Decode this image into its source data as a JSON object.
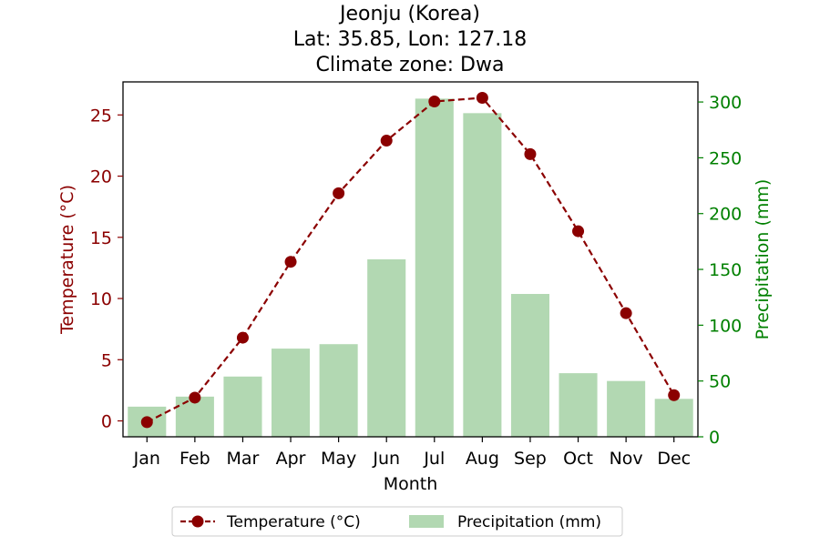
{
  "chart_data": {
    "type": "bar+line",
    "title_lines": [
      "Jeonju (Korea)",
      "Lat: 35.85, Lon: 127.18",
      "Climate zone: Dwa"
    ],
    "xlabel": "Month",
    "y_left_label": "Temperature (°C)",
    "y_right_label": "Precipitation (mm)",
    "categories": [
      "Jan",
      "Feb",
      "Mar",
      "Apr",
      "May",
      "Jun",
      "Jul",
      "Aug",
      "Sep",
      "Oct",
      "Nov",
      "Dec"
    ],
    "temperature": {
      "name": "Temperature (°C)",
      "values": [
        -0.1,
        1.9,
        6.8,
        13.0,
        18.6,
        22.9,
        26.1,
        26.4,
        21.8,
        15.5,
        8.8,
        2.1
      ],
      "color": "#8b0000",
      "style": "dashed line with circle markers"
    },
    "precipitation": {
      "name": "Precipitation (mm)",
      "values": [
        27,
        36,
        54,
        79,
        83,
        159,
        303,
        290,
        128,
        57,
        50,
        34
      ],
      "color": "#b2d8b2"
    },
    "y_left_ticks": [
      0,
      5,
      10,
      15,
      20,
      25
    ],
    "y_left_ylim": [
      -1.3,
      27.7
    ],
    "y_right_ticks": [
      0,
      50,
      100,
      150,
      200,
      250,
      300
    ],
    "y_right_ylim": [
      0,
      318
    ],
    "left_axis_color": "#8b0000",
    "right_axis_color": "#008000",
    "legend_position": "bottom-center",
    "grid": false
  }
}
